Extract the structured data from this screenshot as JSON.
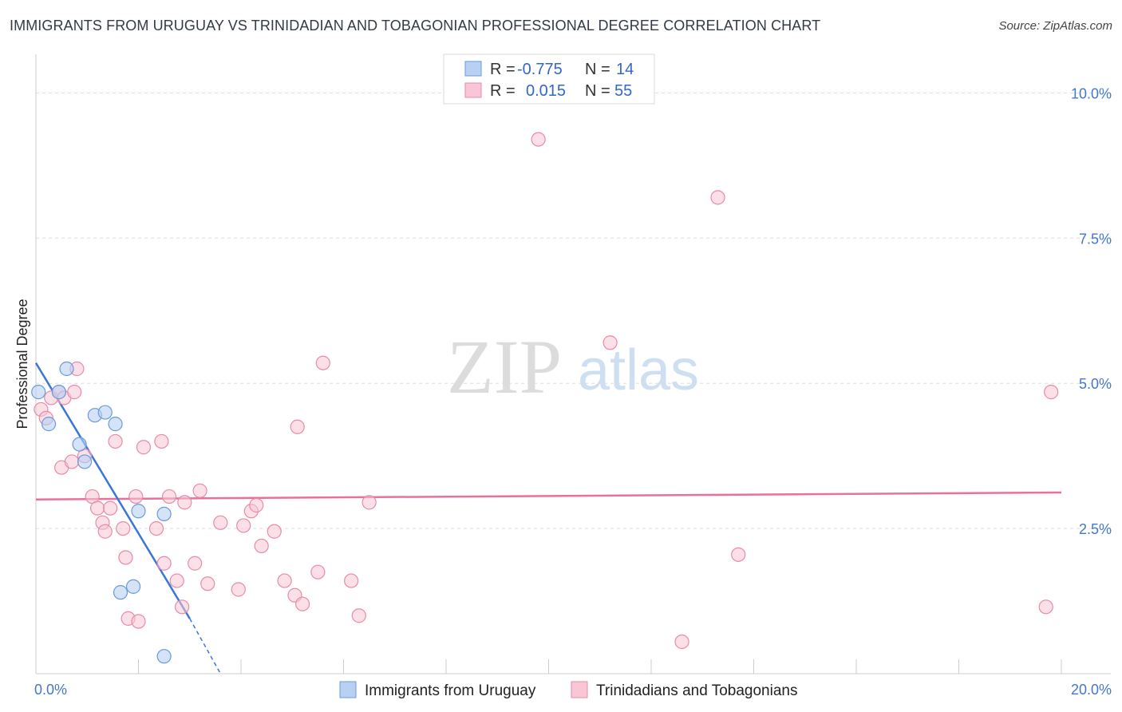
{
  "header": {
    "title": "IMMIGRANTS FROM URUGUAY VS TRINIDADIAN AND TOBAGONIAN PROFESSIONAL DEGREE CORRELATION CHART",
    "source": "Source: ZipAtlas.com"
  },
  "watermark": {
    "zip": "ZIP",
    "atlas": "atlas"
  },
  "legend": {
    "series1": {
      "r_label": "R =",
      "r_value": "-0.775",
      "n_label": "N =",
      "n_value": "14"
    },
    "series2": {
      "r_label": "R =",
      "r_value": "0.015",
      "n_label": "N =",
      "n_value": "55"
    }
  },
  "colors": {
    "blue_fill": "#b8d1f3",
    "blue_stroke": "#6a9ad8",
    "blue_line": "#3a76d6",
    "pink_fill": "#f8c6d5",
    "pink_stroke": "#e88aa8",
    "pink_line": "#e8709a",
    "tick": "#4477cc",
    "grid": "#dddddd"
  },
  "chart_data": {
    "type": "scatter",
    "title": "IMMIGRANTS FROM URUGUAY VS TRINIDADIAN AND TOBAGONIAN PROFESSIONAL DEGREE CORRELATION CHART",
    "xlabel": "",
    "ylabel": "Professional Degree",
    "xlim": [
      0,
      20
    ],
    "ylim": [
      0,
      10.5
    ],
    "x_tick_labels": [
      "0.0%",
      "20.0%"
    ],
    "y_ticks": [
      2.5,
      5.0,
      7.5,
      10.0
    ],
    "y_tick_labels": [
      "2.5%",
      "5.0%",
      "7.5%",
      "10.0%"
    ],
    "series": [
      {
        "name": "Immigrants from Uruguay",
        "color": "#b8d1f3",
        "points": [
          [
            0.05,
            4.85
          ],
          [
            0.25,
            4.3
          ],
          [
            0.45,
            4.85
          ],
          [
            0.6,
            5.25
          ],
          [
            0.85,
            3.95
          ],
          [
            0.95,
            3.65
          ],
          [
            1.15,
            4.45
          ],
          [
            1.35,
            4.5
          ],
          [
            1.55,
            4.3
          ],
          [
            1.65,
            1.4
          ],
          [
            1.9,
            1.5
          ],
          [
            2.0,
            2.8
          ],
          [
            2.5,
            2.75
          ],
          [
            2.5,
            0.3
          ]
        ],
        "trend": {
          "x0": 0.0,
          "y0": 5.35,
          "x1": 3.0,
          "y1": 0.95,
          "dash_x1": 3.6,
          "dash_y1": 0.0
        }
      },
      {
        "name": "Trinidadians and Tobagonians",
        "color": "#f8c6d5",
        "points": [
          [
            0.1,
            4.55
          ],
          [
            0.2,
            4.4
          ],
          [
            0.3,
            4.75
          ],
          [
            0.45,
            4.85
          ],
          [
            0.55,
            4.75
          ],
          [
            0.75,
            4.85
          ],
          [
            0.8,
            5.25
          ],
          [
            0.5,
            3.55
          ],
          [
            0.7,
            3.65
          ],
          [
            0.95,
            3.75
          ],
          [
            1.1,
            3.05
          ],
          [
            1.2,
            2.85
          ],
          [
            1.3,
            2.6
          ],
          [
            1.35,
            2.45
          ],
          [
            1.45,
            2.85
          ],
          [
            1.55,
            4.0
          ],
          [
            1.7,
            2.5
          ],
          [
            1.75,
            2.0
          ],
          [
            1.8,
            0.95
          ],
          [
            1.95,
            3.05
          ],
          [
            2.0,
            0.9
          ],
          [
            2.1,
            3.9
          ],
          [
            2.35,
            2.5
          ],
          [
            2.45,
            4.0
          ],
          [
            2.5,
            1.9
          ],
          [
            2.6,
            3.05
          ],
          [
            2.75,
            1.6
          ],
          [
            2.85,
            1.15
          ],
          [
            2.9,
            2.95
          ],
          [
            3.1,
            1.9
          ],
          [
            3.2,
            3.15
          ],
          [
            3.35,
            1.55
          ],
          [
            3.6,
            2.6
          ],
          [
            3.95,
            1.45
          ],
          [
            4.05,
            2.55
          ],
          [
            4.2,
            2.8
          ],
          [
            4.3,
            2.9
          ],
          [
            4.4,
            2.2
          ],
          [
            4.65,
            2.45
          ],
          [
            4.85,
            1.6
          ],
          [
            5.05,
            1.35
          ],
          [
            5.1,
            4.25
          ],
          [
            5.2,
            1.2
          ],
          [
            5.5,
            1.75
          ],
          [
            5.6,
            5.35
          ],
          [
            6.15,
            1.6
          ],
          [
            6.3,
            1.0
          ],
          [
            6.5,
            2.95
          ],
          [
            9.8,
            9.2
          ],
          [
            11.2,
            5.7
          ],
          [
            12.6,
            0.55
          ],
          [
            13.3,
            8.2
          ],
          [
            13.7,
            2.05
          ],
          [
            19.7,
            1.15
          ],
          [
            19.8,
            4.85
          ]
        ],
        "trend": {
          "x0": 0.0,
          "y0": 3.0,
          "x1": 20.0,
          "y1": 3.12
        }
      }
    ]
  }
}
